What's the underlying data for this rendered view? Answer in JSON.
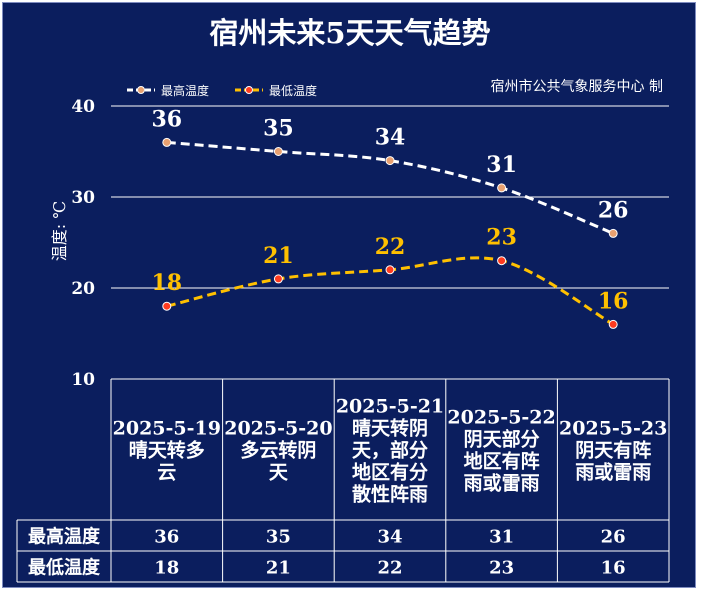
{
  "chart_data": {
    "type": "line",
    "title": "宿州未来5天天气趋势",
    "credit": "宿州市公共气象服务中心 制",
    "ylabel": "温度: ℃",
    "ylim": [
      10,
      40
    ],
    "yticks": [
      10,
      20,
      30,
      40
    ],
    "grid": true,
    "legend_position": "top-left",
    "categories": [
      "2025-5-19\n晴天转多\n云",
      "2025-5-20\n多云转阴\n天",
      "2025-5-21\n晴天转阴\n天，部分\n地区有分\n散性阵雨",
      "2025-5-22\n阴天部分\n地区有阵\n雨或雷雨",
      "2025-5-23\n阴天有阵\n雨或雷雨"
    ],
    "series": [
      {
        "name": "最高温度",
        "values": [
          36,
          35,
          34,
          31,
          26
        ],
        "color": "#ffffff",
        "marker_color": "#e8a070",
        "label_color": "#ffffff"
      },
      {
        "name": "最低温度",
        "values": [
          18,
          21,
          22,
          23,
          16
        ],
        "color": "#ffc000",
        "marker_color": "#ff3b1f",
        "label_color": "#ffc000"
      }
    ],
    "table_rows": [
      {
        "label": "最高温度",
        "values": [
          "36",
          "35",
          "34",
          "31",
          "26"
        ]
      },
      {
        "label": "最低温度",
        "values": [
          "18",
          "21",
          "22",
          "23",
          "16"
        ]
      }
    ]
  }
}
